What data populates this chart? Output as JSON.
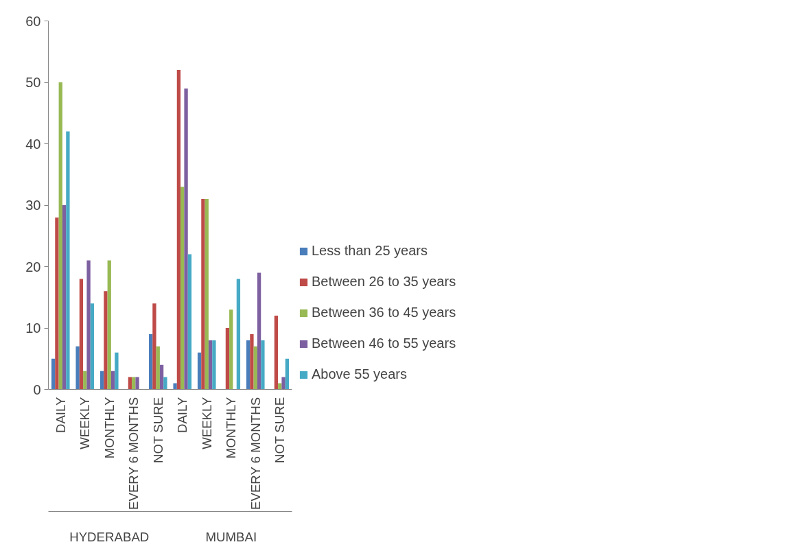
{
  "chart_data": {
    "type": "bar",
    "categories": [
      "DAILY",
      "WEEKLY",
      "MONTHLY",
      "EVERY 6 MONTHS",
      "NOT SURE",
      "DAILY",
      "WEEKLY",
      "MONTHLY",
      "EVERY 6 MONTHS",
      "NOT SURE"
    ],
    "annotations": [
      "HYDERABAD",
      "MUMBAI"
    ],
    "series": [
      {
        "name": "Less than 25 years",
        "color": "#4a7ebb",
        "values": [
          5,
          7,
          3,
          0,
          9,
          1,
          6,
          0,
          8,
          0
        ]
      },
      {
        "name": "Between 26 to 35 years",
        "color": "#be4b48",
        "values": [
          28,
          18,
          16,
          2,
          14,
          52,
          31,
          10,
          9,
          12
        ]
      },
      {
        "name": "Between 36 to 45 years",
        "color": "#98b954",
        "values": [
          50,
          3,
          21,
          2,
          7,
          33,
          31,
          13,
          7,
          1
        ]
      },
      {
        "name": "Between 46 to 55 years",
        "color": "#7d60a0",
        "values": [
          30,
          21,
          3,
          2,
          4,
          49,
          8,
          0,
          19,
          2
        ]
      },
      {
        "name": "Above 55 years",
        "color": "#46aac5",
        "values": [
          42,
          14,
          6,
          0,
          2,
          22,
          8,
          18,
          8,
          5
        ]
      }
    ],
    "ylim": [
      0,
      60
    ],
    "yticks": [
      0,
      10,
      20,
      30,
      40,
      50,
      60
    ],
    "grid": false,
    "legend": "right"
  }
}
